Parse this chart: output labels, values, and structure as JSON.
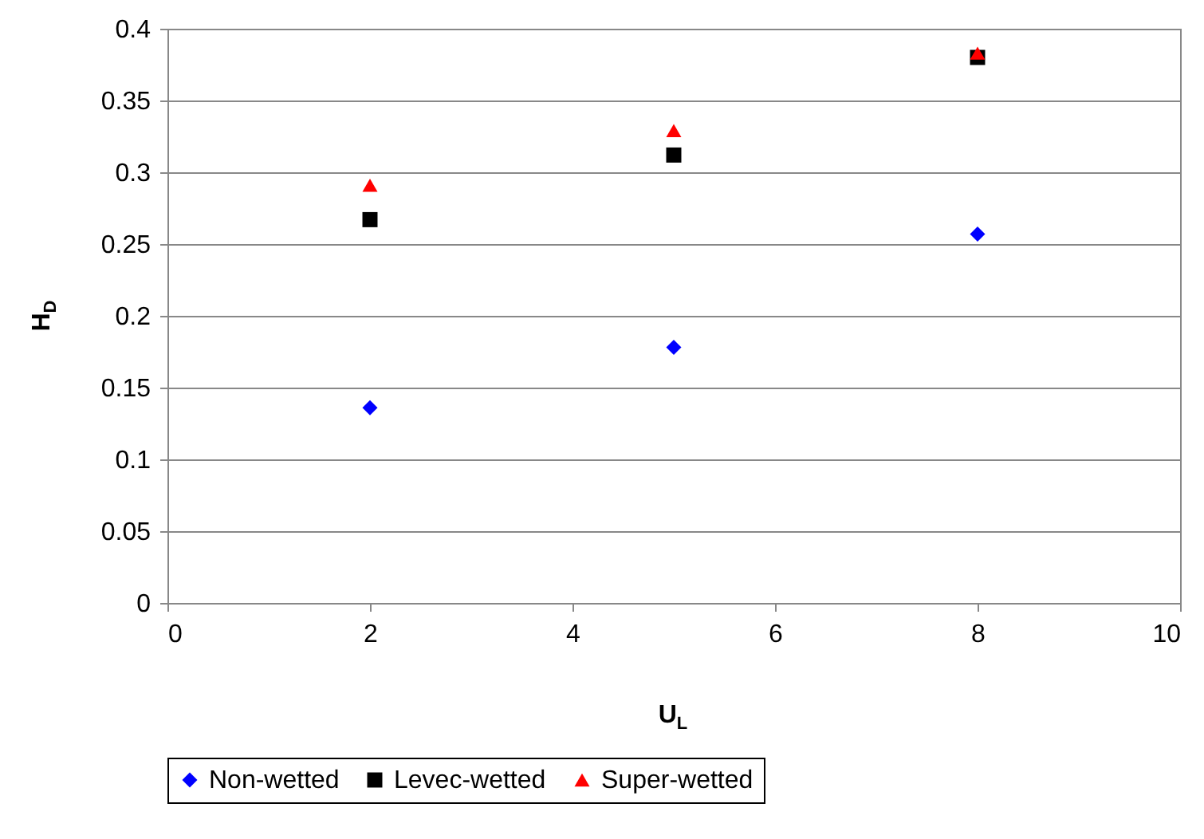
{
  "chart_data": {
    "type": "scatter",
    "xlabel": "U$_{L}$",
    "ylabel": "H$_{D}$",
    "x": [
      2,
      5,
      8
    ],
    "series": [
      {
        "name": "Non-wetted",
        "color": "#0000ff",
        "marker": "diamond",
        "values": [
          0.136,
          0.178,
          0.257
        ]
      },
      {
        "name": "Levec-wetted",
        "color": "#000000",
        "marker": "square",
        "values": [
          0.267,
          0.312,
          0.38
        ]
      },
      {
        "name": "Super-wetted",
        "color": "#ff0000",
        "marker": "triangle",
        "values": [
          0.291,
          0.329,
          0.383
        ]
      }
    ],
    "xlim": [
      0,
      10
    ],
    "xticks": [
      0,
      2,
      4,
      6,
      8,
      10
    ],
    "ylim": [
      0,
      0.4
    ],
    "yticks": [
      0,
      0.05,
      0.1,
      0.15,
      0.2,
      0.25,
      0.3,
      0.35,
      0.4
    ],
    "grid": "y",
    "legend": "bottom"
  }
}
